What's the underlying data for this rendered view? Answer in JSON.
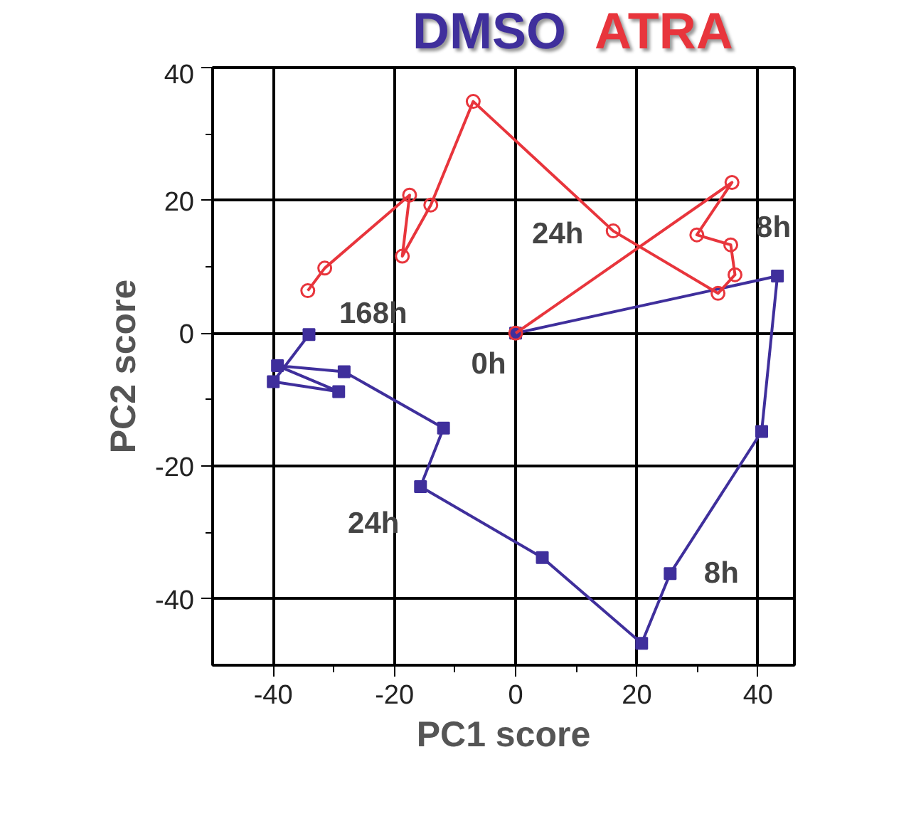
{
  "chart_data": {
    "type": "line",
    "xlabel": "PC1 score",
    "ylabel": "PC2 score",
    "xlim": [
      -50,
      46
    ],
    "ylim": [
      -50,
      40
    ],
    "xticks": [
      -40,
      -20,
      0,
      20,
      40
    ],
    "yticks": [
      -40,
      -20,
      0,
      20,
      40
    ],
    "grid": true,
    "line_style": "solid",
    "series": [
      {
        "name": "DMSO",
        "color": "#3f2f9c",
        "marker": "square",
        "x": [
          0,
          43.2,
          40.6,
          25.5,
          20.8,
          4.4,
          -15.7,
          -11.9,
          -28.3,
          -39.3,
          -29.2,
          -40,
          -34.1
        ],
        "values": [
          0,
          8.6,
          -14.8,
          -36.2,
          -46.7,
          -33.8,
          -23.1,
          -14.3,
          -5.8,
          -4.9,
          -8.8,
          -7.3,
          -0.2
        ]
      },
      {
        "name": "ATRA",
        "color": "#e8353c",
        "marker": "circle",
        "x": [
          0,
          35.7,
          29.9,
          35.5,
          36.2,
          33.4,
          16.1,
          -7,
          -14,
          -18.7,
          -17.5,
          -31.5,
          -34.3
        ],
        "values": [
          0,
          22.7,
          14.8,
          13.3,
          8.8,
          6,
          15.4,
          34.9,
          19.3,
          11.6,
          20.8,
          9.8,
          6.4
        ]
      }
    ],
    "annotations": [
      {
        "text": "0h",
        "x": 0,
        "y": 0
      },
      {
        "text": "168h",
        "x": -34.3,
        "y": 6.4
      },
      {
        "text": "24h",
        "x": 16.1,
        "y": 15.4
      },
      {
        "text": "8h",
        "x": 35.5,
        "y": 13.3
      },
      {
        "text": "24h",
        "x": -15.7,
        "y": -23.1
      },
      {
        "text": "8h",
        "x": 25.5,
        "y": -36.2
      }
    ]
  }
}
